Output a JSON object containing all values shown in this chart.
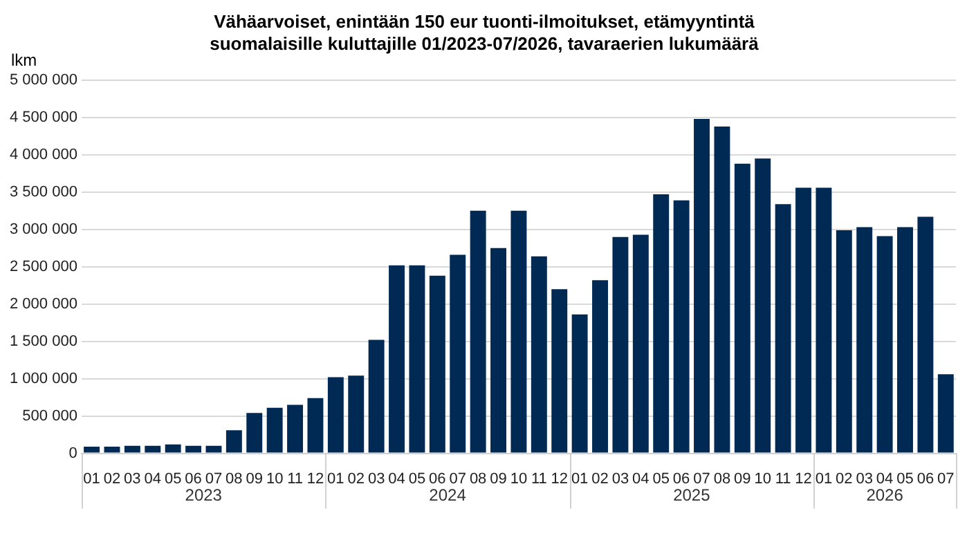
{
  "chart_data": {
    "type": "bar",
    "title": "Vähäarvoiset, enintään 150 eur tuonti-ilmoitukset,  etämyyntintä suomalaisille kuluttajille 01/2023-07/2026,  tavaraerien lukumäärä",
    "ylabel": "lkm",
    "categories": [
      "01",
      "02",
      "03",
      "04",
      "05",
      "06",
      "07",
      "08",
      "09",
      "10",
      "11",
      "12",
      "01",
      "02",
      "03",
      "04",
      "05",
      "06",
      "07",
      "08",
      "09",
      "10",
      "11",
      "12",
      "01",
      "02",
      "03",
      "04",
      "05",
      "06",
      "07",
      "08",
      "09",
      "10",
      "11",
      "12",
      "01",
      "02",
      "03",
      "04",
      "05",
      "06",
      "07"
    ],
    "values": [
      90000,
      90000,
      100000,
      100000,
      120000,
      100000,
      100000,
      310000,
      540000,
      610000,
      650000,
      740000,
      1020000,
      1040000,
      1520000,
      2520000,
      2520000,
      2380000,
      2660000,
      3250000,
      2750000,
      3250000,
      2640000,
      2200000,
      1860000,
      2320000,
      2900000,
      2930000,
      3470000,
      3390000,
      4480000,
      4380000,
      3880000,
      3950000,
      3340000,
      3560000,
      3560000,
      2990000,
      3030000,
      2910000,
      3030000,
      3170000,
      1060000
    ],
    "color": "#002a54",
    "ylim": [
      0,
      5000000
    ],
    "yticks": [
      {
        "value": 0,
        "label": "0"
      },
      {
        "value": 500000,
        "label": "500 000"
      },
      {
        "value": 1000000,
        "label": "1 000 000"
      },
      {
        "value": 1500000,
        "label": "1 500 000"
      },
      {
        "value": 2000000,
        "label": "2 000 000"
      },
      {
        "value": 2500000,
        "label": "2 500 000"
      },
      {
        "value": 3000000,
        "label": "3 000 000"
      },
      {
        "value": 3500000,
        "label": "3 500 000"
      },
      {
        "value": 4000000,
        "label": "4 000 000"
      },
      {
        "value": 4500000,
        "label": "4 500 000"
      },
      {
        "value": 5000000,
        "label": "5 000 000"
      }
    ],
    "annotations": [
      "2023",
      "2024",
      "2025",
      "2026"
    ],
    "grid": "y",
    "legend": false
  }
}
